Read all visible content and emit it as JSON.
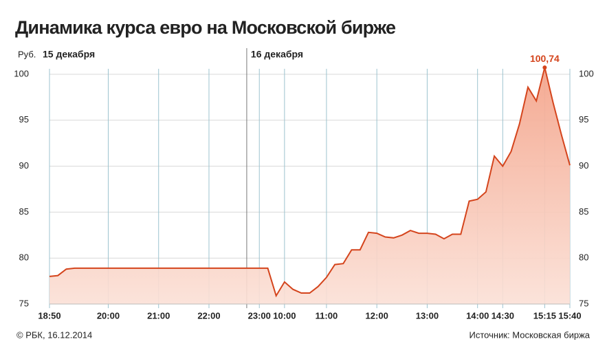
{
  "chart_data": {
    "type": "area",
    "title": "Динамика курса евро на Московской бирже",
    "y_label": "Руб.",
    "dates": [
      "15 декабря",
      "16 декабря"
    ],
    "credit": "© РБК, 16.12.2014",
    "source": "Источник: Московская биржа",
    "color": "#d4441c",
    "fill": "#f7b7a3",
    "grid": true,
    "ylim": [
      75,
      100
    ],
    "yticks": [
      75,
      80,
      85,
      90,
      95,
      100
    ],
    "categories": [
      "18:50",
      null,
      null,
      null,
      null,
      null,
      null,
      "20:00",
      null,
      null,
      null,
      null,
      null,
      "21:00",
      null,
      null,
      null,
      null,
      null,
      "22:00",
      null,
      null,
      null,
      null,
      null,
      "23:00",
      null,
      null,
      "10:00",
      null,
      null,
      null,
      null,
      "11:00",
      null,
      null,
      null,
      null,
      null,
      "12:00",
      null,
      null,
      null,
      null,
      null,
      "13:00",
      null,
      null,
      null,
      null,
      null,
      "14:00",
      null,
      null,
      "14:30",
      null,
      null,
      null,
      null,
      "15:15",
      null,
      null,
      "15:40"
    ],
    "values": [
      78.0,
      78.1,
      78.8,
      78.9,
      78.9,
      78.9,
      78.9,
      78.9,
      78.9,
      78.9,
      78.9,
      78.9,
      78.9,
      78.9,
      78.9,
      78.9,
      78.9,
      78.9,
      78.9,
      78.9,
      78.9,
      78.9,
      78.9,
      78.9,
      78.9,
      78.9,
      78.9,
      75.9,
      77.4,
      76.6,
      76.2,
      76.2,
      76.9,
      77.9,
      79.3,
      79.4,
      80.9,
      80.9,
      82.8,
      82.7,
      82.3,
      82.2,
      82.5,
      83.0,
      82.7,
      82.7,
      82.6,
      82.1,
      82.6,
      82.6,
      86.2,
      86.4,
      87.2,
      91.1,
      90.0,
      91.6,
      94.6,
      98.6,
      97.1,
      100.74,
      96.9,
      93.4,
      90.1
    ],
    "value_labels": [
      null,
      null,
      null,
      null,
      null,
      null,
      null,
      null,
      null,
      null,
      null,
      null,
      null,
      null,
      null,
      null,
      null,
      null,
      null,
      null,
      null,
      null,
      null,
      null,
      null,
      null,
      null,
      null,
      null,
      null,
      null,
      null,
      null,
      null,
      null,
      null,
      null,
      null,
      null,
      null,
      null,
      null,
      null,
      null,
      null,
      null,
      null,
      null,
      null,
      null,
      null,
      null,
      null,
      null,
      null,
      null,
      null,
      null,
      null,
      "100,74",
      null,
      null,
      null
    ]
  }
}
